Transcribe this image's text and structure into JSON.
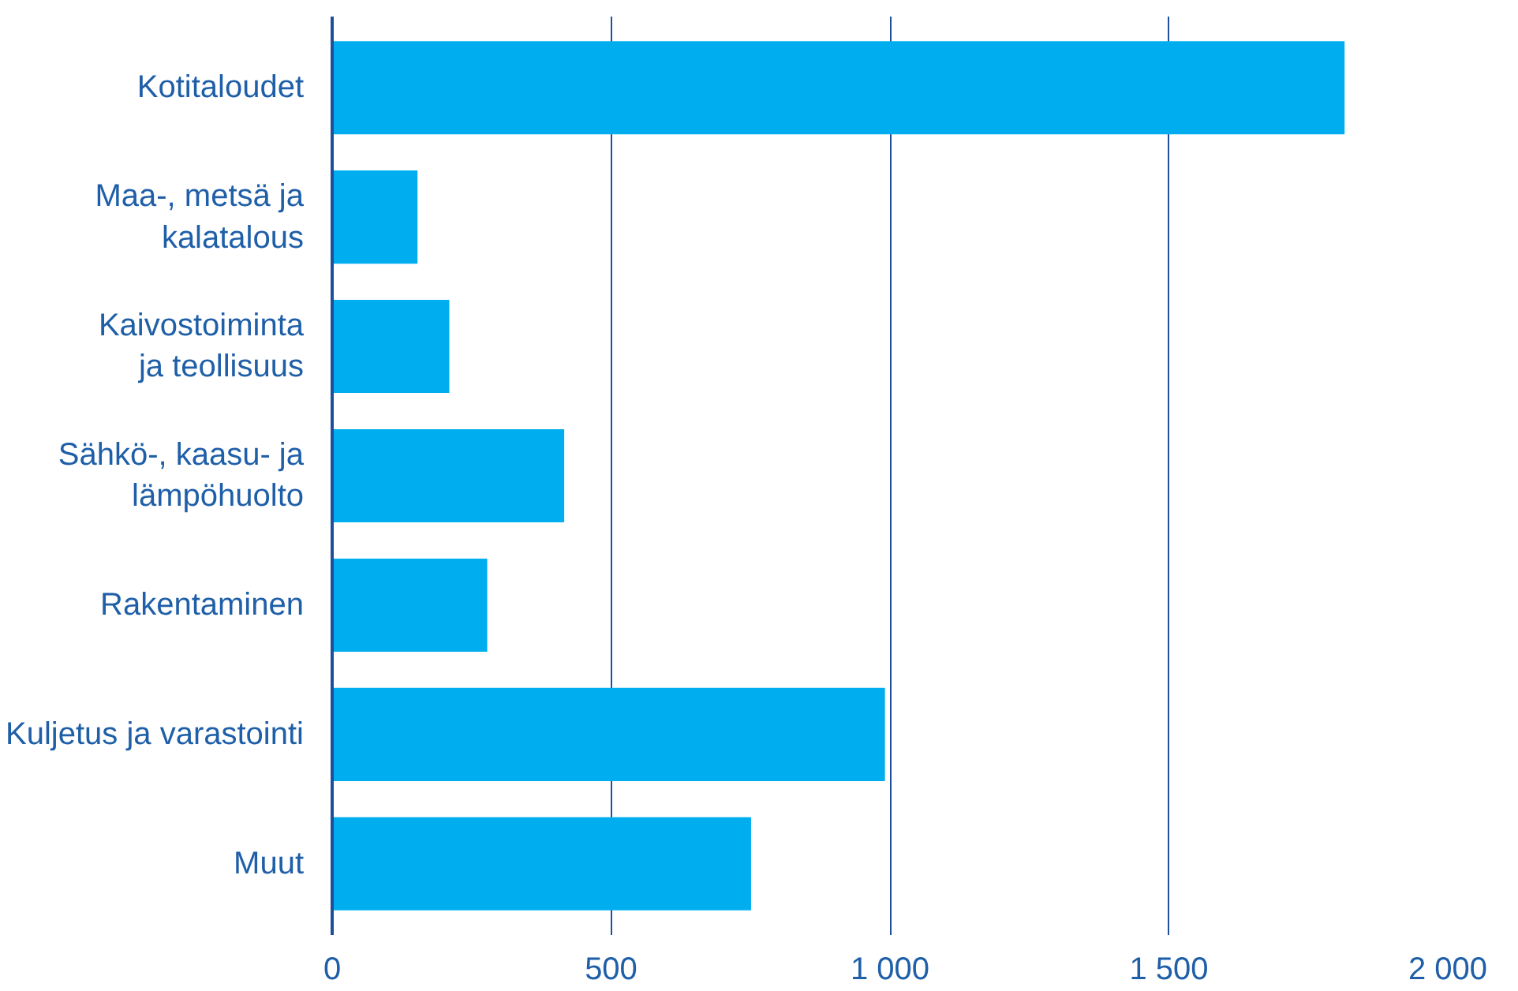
{
  "chart_data": {
    "type": "bar",
    "orientation": "horizontal",
    "categories": [
      "Kotitaloudet",
      "Maa-, metsä ja\nkalatalous",
      "Kaivostoiminta\nja teollisuus",
      "Sähkö-, kaasu- ja\nlämpöhuolto",
      "Rakentaminen",
      "Kuljetus ja varastointi",
      "Muut"
    ],
    "values": [
      1815,
      153,
      210,
      416,
      278,
      991,
      751
    ],
    "color": "#00aeef",
    "xlim": [
      0,
      2000
    ],
    "xticks": [
      0,
      500,
      {
        "value": 1000,
        "label": "1 000"
      },
      {
        "value": 1500,
        "label": "1 500"
      },
      {
        "value": 2000,
        "label": "2 000"
      }
    ],
    "grid": "x"
  }
}
